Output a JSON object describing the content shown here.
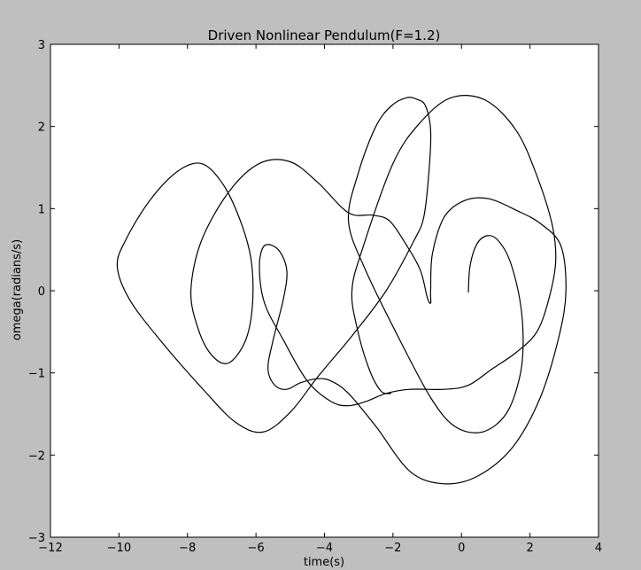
{
  "chart_data": {
    "type": "line",
    "title": "Driven Nonlinear Pendulum(F=1.2)",
    "xlabel": "time(s)",
    "ylabel": "omega(radians/s)",
    "xlim": [
      -12,
      4
    ],
    "ylim": [
      -3,
      3
    ],
    "x_ticks": [
      -12,
      -10,
      -8,
      -6,
      -4,
      -2,
      0,
      2,
      4
    ],
    "y_ticks": [
      -3,
      -2,
      -1,
      0,
      1,
      2,
      3
    ],
    "x_tick_labels": [
      "−12",
      "−10",
      "−8",
      "−6",
      "−4",
      "−2",
      "0",
      "2",
      "4"
    ],
    "y_tick_labels": [
      "−3",
      "−2",
      "−1",
      "0",
      "1",
      "2",
      "3"
    ],
    "grid": false,
    "series": [
      {
        "color": "#000000",
        "x": [
          0.2,
          0.25,
          0.45,
          0.75,
          1.05,
          1.4,
          1.7,
          1.8,
          1.7,
          1.3,
          0.6,
          -0.2,
          -0.9,
          -1.8,
          -2.8,
          -3.3,
          -3.0,
          -2.5,
          -2.05,
          -1.6,
          -1.3,
          -1.05,
          -0.9,
          -0.95,
          -1.1,
          -1.4,
          -2.2,
          -3.2,
          -4.2,
          -5.0,
          -5.8,
          -6.6,
          -7.5,
          -8.8,
          -9.7,
          -10.05,
          -9.8,
          -9.1,
          -8.3,
          -7.6,
          -7.0,
          -6.5,
          -6.15,
          -6.1,
          -6.3,
          -6.8,
          -7.3,
          -7.7,
          -7.9,
          -7.6,
          -6.8,
          -5.9,
          -5.0,
          -4.2,
          -3.3,
          -2.6,
          -2.1,
          -1.6,
          -1.2,
          -1.0,
          -0.9,
          -0.9,
          -0.85,
          -0.5,
          0.1,
          0.8,
          1.6,
          2.3,
          2.9,
          3.05,
          2.85,
          2.3,
          1.5,
          0.5,
          -0.5,
          -1.5,
          -2.5,
          -3.3,
          -3.8,
          -4.2,
          -4.7,
          -5.1,
          -5.45,
          -5.65,
          -5.5,
          -5.2,
          -5.1,
          -5.35,
          -5.75,
          -5.9,
          -5.75,
          -5.2,
          -4.5,
          -3.8,
          -3.3,
          -2.8,
          -2.2,
          -1.5,
          -0.5,
          0.2,
          0.9,
          1.6,
          2.2,
          2.55,
          2.75,
          2.65,
          2.2,
          1.6,
          0.7,
          -0.3,
          -1.2,
          -2.0,
          -2.9,
          -3.2,
          -3.05,
          -2.7,
          -2.35,
          -2.05
        ],
        "y": [
          -0.02,
          0.3,
          0.57,
          0.67,
          0.62,
          0.38,
          -0.1,
          -0.6,
          -1.05,
          -1.5,
          -1.72,
          -1.65,
          -1.3,
          -0.6,
          0.25,
          0.85,
          1.45,
          2.0,
          2.25,
          2.35,
          2.33,
          2.25,
          1.95,
          1.45,
          0.9,
          0.6,
          0.0,
          -0.55,
          -1.05,
          -1.48,
          -1.72,
          -1.6,
          -1.22,
          -0.6,
          -0.1,
          0.3,
          0.62,
          1.1,
          1.45,
          1.55,
          1.32,
          0.9,
          0.4,
          -0.15,
          -0.6,
          -0.88,
          -0.78,
          -0.45,
          0.0,
          0.6,
          1.2,
          1.55,
          1.57,
          1.32,
          0.95,
          0.92,
          0.85,
          0.55,
          0.25,
          -0.08,
          -0.15,
          0.0,
          0.45,
          0.9,
          1.1,
          1.12,
          0.98,
          0.82,
          0.55,
          0.0,
          -0.55,
          -1.3,
          -1.9,
          -2.25,
          -2.35,
          -2.2,
          -1.65,
          -1.25,
          -1.1,
          -1.07,
          -1.12,
          -1.2,
          -1.15,
          -0.95,
          -0.6,
          -0.1,
          0.25,
          0.5,
          0.55,
          0.3,
          -0.15,
          -0.6,
          -1.1,
          -1.35,
          -1.4,
          -1.35,
          -1.25,
          -1.2,
          -1.2,
          -1.15,
          -0.95,
          -0.75,
          -0.5,
          -0.1,
          0.35,
          0.8,
          1.4,
          1.95,
          2.32,
          2.35,
          2.05,
          1.55,
          0.5,
          0.0,
          -0.45,
          -0.95,
          -1.22,
          -1.25
        ]
      }
    ]
  }
}
